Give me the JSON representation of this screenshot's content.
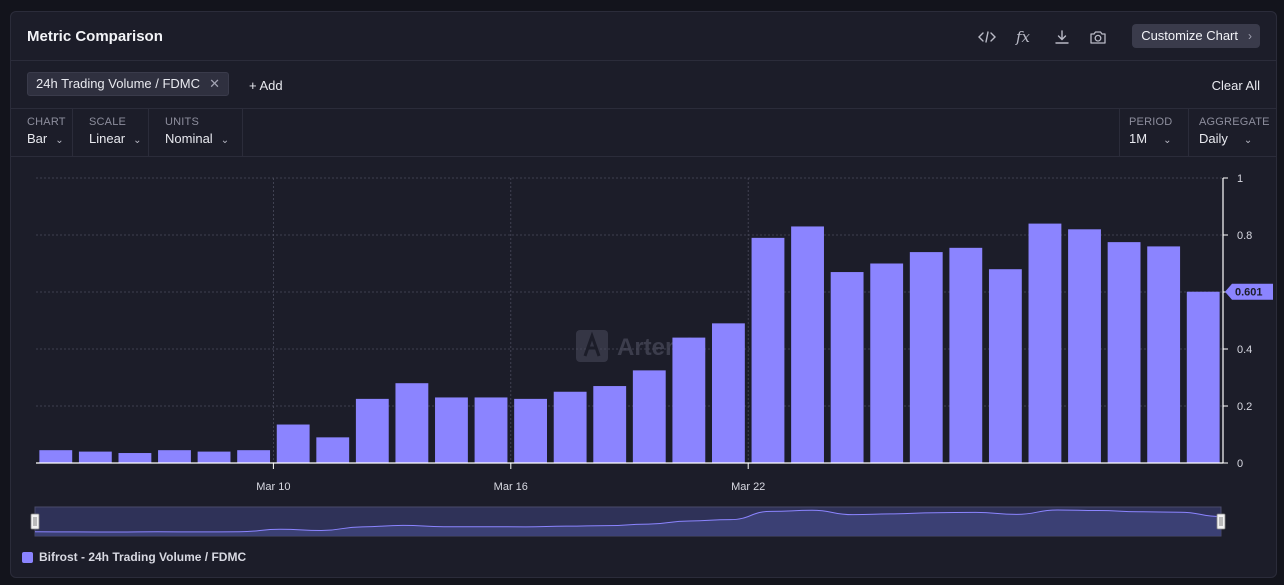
{
  "header": {
    "title": "Metric Comparison",
    "customize_label": "Customize Chart",
    "icons": [
      "code-icon",
      "fx-icon",
      "download-icon",
      "camera-icon"
    ],
    "fx_label": "fx"
  },
  "metrics": {
    "chip_label": "24h Trading Volume / FDMC",
    "add_label": "+ Add",
    "clear_label": "Clear All"
  },
  "controls": {
    "chart": {
      "label": "CHART",
      "value": "Bar"
    },
    "scale": {
      "label": "SCALE",
      "value": "Linear"
    },
    "units": {
      "label": "UNITS",
      "value": "Nominal"
    },
    "period": {
      "label": "PERIOD",
      "value": "1M"
    },
    "aggregate": {
      "label": "AGGREGATE",
      "value": "Daily"
    }
  },
  "watermark": "Artemis",
  "colors": {
    "bar": "#8b84ff",
    "background": "#1c1d29",
    "grid": "#4a4b5c"
  },
  "chart_data": {
    "type": "bar",
    "title": "",
    "xlabel": "",
    "ylabel": "",
    "ylim": [
      0,
      1
    ],
    "yticks": [
      "0",
      "0.2",
      "0.4",
      "0.6",
      "0.8",
      "1"
    ],
    "x_tick_labels": [
      "Mar 10",
      "Mar 16",
      "Mar 22"
    ],
    "x_tick_bar_index": [
      6,
      12,
      18
    ],
    "last_value_label": "0.601",
    "grid": true,
    "legend": "bottom-left",
    "series": [
      {
        "name": "Bifrost - 24h Trading Volume / FDMC",
        "values": [
          0.045,
          0.04,
          0.035,
          0.045,
          0.04,
          0.045,
          0.135,
          0.09,
          0.225,
          0.28,
          0.23,
          0.23,
          0.225,
          0.25,
          0.27,
          0.325,
          0.44,
          0.49,
          0.79,
          0.83,
          0.67,
          0.7,
          0.74,
          0.755,
          0.68,
          0.84,
          0.82,
          0.775,
          0.76,
          0.601
        ]
      }
    ]
  }
}
